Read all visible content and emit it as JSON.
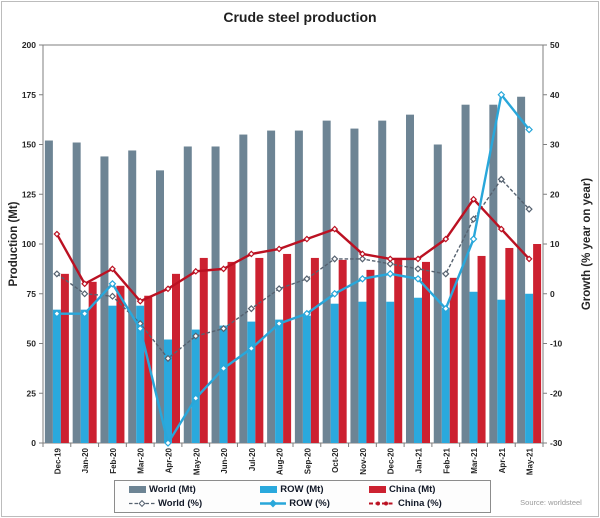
{
  "title": "Crude steel production",
  "source_note": "Source: worldsteel",
  "y_left": {
    "title": "Production (Mt)",
    "min": 0,
    "max": 200,
    "ticks": [
      0,
      25,
      50,
      75,
      100,
      125,
      150,
      175,
      200
    ]
  },
  "y_right": {
    "title": "Growth (% year on year)",
    "min": -30,
    "max": 50,
    "ticks": [
      50,
      40,
      30,
      20,
      10,
      0,
      -10,
      -20,
      -30
    ]
  },
  "colors": {
    "world_bar": "#6d8494",
    "row_bar": "#2aa9dd",
    "china_bar": "#cc2130",
    "world_line": "#566270",
    "row_line": "#29a7da",
    "china_line": "#bb1122",
    "axis_text": "#262626",
    "title_text": "#1f1f1f",
    "legend_text": "#111827",
    "source_text": "#9a9a9a",
    "plot_border": "#7f7f7f"
  },
  "chart_data": {
    "type": "combo-bar-line",
    "title": "Crude steel production",
    "xlabel": "",
    "ylabel_left": "Production (Mt)",
    "ylabel_right": "Growth (% year on year)",
    "ylim_left": [
      0,
      200
    ],
    "ylim_right": [
      -30,
      50
    ],
    "grid": false,
    "legend_position": "bottom",
    "categories": [
      "Dec-19",
      "Jan-20",
      "Feb-20",
      "Mar-20",
      "Apr-20",
      "May-20",
      "Jun-20",
      "Jul-20",
      "Aug-20",
      "Sep-20",
      "Oct-20",
      "Nov-20",
      "Dec-20",
      "Jan-21",
      "Feb-21",
      "Mar-21",
      "Apr-21",
      "May-21"
    ],
    "series": [
      {
        "name": "World (Mt)",
        "type": "bar",
        "axis": "left",
        "color_key": "world_bar",
        "values": [
          152,
          151,
          144,
          147,
          137,
          149,
          149,
          155,
          157,
          157,
          162,
          158,
          162,
          165,
          150,
          170,
          170,
          174
        ]
      },
      {
        "name": "ROW (Mt)",
        "type": "bar",
        "axis": "left",
        "color_key": "row_bar",
        "values": [
          67,
          67,
          69,
          69,
          52,
          57,
          59,
          61,
          62,
          64,
          70,
          71,
          71,
          73,
          68,
          76,
          72,
          75
        ]
      },
      {
        "name": "China (Mt)",
        "type": "bar",
        "axis": "left",
        "color_key": "china_bar",
        "values": [
          85,
          81,
          79,
          74,
          85,
          93,
          91,
          93,
          95,
          93,
          92,
          87,
          93,
          91,
          83,
          94,
          98,
          100
        ]
      },
      {
        "name": "World (%)",
        "type": "line",
        "axis": "right",
        "color_key": "world_line",
        "values": [
          4,
          0,
          -0.5,
          -6,
          -13,
          -8.5,
          -7,
          -3,
          1,
          3,
          7,
          7,
          6,
          5,
          4,
          15,
          23,
          17
        ]
      },
      {
        "name": "ROW (%)",
        "type": "line",
        "axis": "right",
        "color_key": "row_line",
        "values": [
          -4,
          -4,
          2,
          -7,
          -30,
          -21,
          -15,
          -11,
          -6,
          -4,
          0,
          3,
          4,
          3,
          -3,
          11,
          40,
          33
        ]
      },
      {
        "name": "China (%)",
        "type": "line",
        "axis": "right",
        "color_key": "china_line",
        "values": [
          12,
          2,
          5,
          -1.5,
          1,
          4.5,
          5,
          8,
          9,
          11,
          13,
          8,
          7,
          7,
          11,
          19,
          13,
          7
        ]
      }
    ]
  }
}
